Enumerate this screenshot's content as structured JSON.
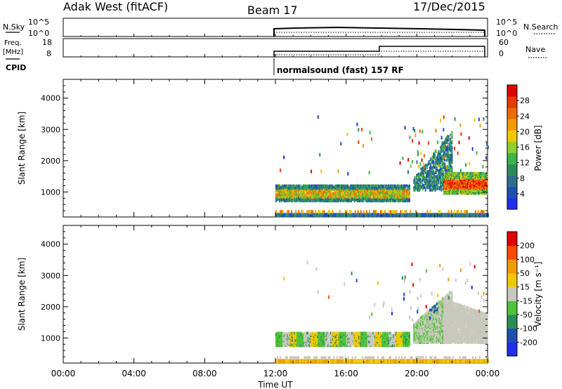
{
  "header": {
    "station": "Adak West (fitACF)",
    "beam": "Beam 17",
    "date": "17/Dec/2015"
  },
  "strip_labels": {
    "nsky": "N.Sky",
    "freq_line1": "Freq.",
    "freq_line2": "[MHz]",
    "cpid": "CPID",
    "nsearch": "N.Search",
    "nave": "Nave"
  },
  "strip_ticks": {
    "nsky_top": "10^5",
    "nsky_bottom": "10^0",
    "nsearch_top": "10^5",
    "nsearch_bottom": "10^0",
    "freq_top": "18",
    "freq_bottom": "8",
    "nave_top": "60",
    "nave_bottom": "0"
  },
  "cpid_text": "normalsound (fast) 157 RF",
  "colors": {
    "power_scale": [
      "#1f2ef0",
      "#1f4fb0",
      "#2e6f8e",
      "#2e8b57",
      "#3cb34a",
      "#8ccf2e",
      "#f0c800",
      "#f39a00",
      "#f06a00",
      "#e83a00",
      "#e00000"
    ],
    "velocity_scale": [
      "#e00000",
      "#ff4a00",
      "#f39a00",
      "#f0c800",
      "#c8c8bc",
      "#4fc33a",
      "#2e8b57",
      "#1f4fb0",
      "#1f2ef0"
    ],
    "ground_scatter": "#c8c8bc"
  },
  "chart_data": [
    {
      "type": "heatmap",
      "name": "power",
      "ylabel": "Slant Range [km]",
      "xlabel": "Time UT",
      "xlim": [
        0,
        24
      ],
      "ylim": [
        200,
        4600
      ],
      "x_ticks": [
        "00:00",
        "04:00",
        "08:00",
        "12:00",
        "16:00",
        "20:00",
        "00:00"
      ],
      "y_ticks": [
        "1000",
        "2000",
        "3000",
        "4000"
      ],
      "colorbar_label": "Power [dB]",
      "colorbar_ticks": [
        "4",
        "8",
        "12",
        "16",
        "20",
        "24",
        "28"
      ],
      "colorbar_range": [
        0,
        32
      ]
    },
    {
      "type": "heatmap",
      "name": "velocity",
      "ylabel": "Slant Range [km]",
      "xlabel": "Time UT",
      "xlim": [
        0,
        24
      ],
      "ylim": [
        200,
        4600
      ],
      "x_ticks": [
        "00:00",
        "04:00",
        "08:00",
        "12:00",
        "16:00",
        "20:00",
        "00:00"
      ],
      "y_ticks": [
        "1000",
        "2000",
        "3000",
        "4000"
      ],
      "colorbar_label": "Velocity [m s⁻¹]",
      "colorbar_ticks": [
        "200",
        "100",
        "50",
        "15",
        "-15",
        "-50",
        "-100",
        "-200"
      ]
    }
  ]
}
